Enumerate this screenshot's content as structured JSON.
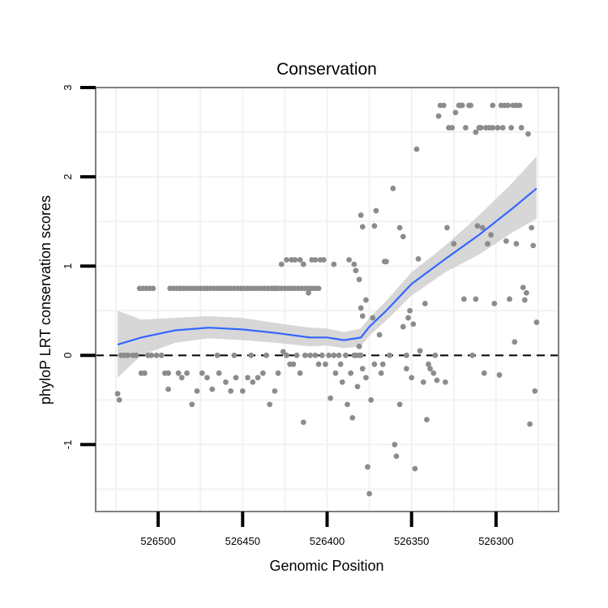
{
  "chart_data": {
    "type": "scatter",
    "title": "Conservation",
    "xlabel": "Genomic Position",
    "ylabel": "phyloP LRT conservation scores",
    "x_reversed": true,
    "xlim": [
      526537,
      526263
    ],
    "ylim": [
      -1.75,
      3.0
    ],
    "x_ticks": [
      526500,
      526450,
      526400,
      526350,
      526300
    ],
    "x_tick_labels": [
      "526500",
      "526450",
      "526400",
      "526350",
      "526300"
    ],
    "y_ticks": [
      -1,
      0,
      1,
      2,
      3
    ],
    "y_tick_labels": [
      "-1",
      "0",
      "1",
      "2",
      "3"
    ],
    "grid": true,
    "reference_line": {
      "y": 0,
      "style": "dashed"
    },
    "colors": {
      "points": "#8c8c8c",
      "smooth_line": "#3366ff",
      "confidence_band": "#d0d0d0",
      "panel_border": "#7f7f7f",
      "grid": "#f2f2f2"
    },
    "smooth": {
      "x": [
        526524,
        526510,
        526490,
        526470,
        526450,
        526430,
        526410,
        526400,
        526390,
        526380,
        526375,
        526365,
        526350,
        526330,
        526310,
        526290,
        526276
      ],
      "y": [
        0.12,
        0.2,
        0.28,
        0.31,
        0.29,
        0.25,
        0.2,
        0.2,
        0.17,
        0.2,
        0.32,
        0.5,
        0.8,
        1.08,
        1.35,
        1.65,
        1.87
      ],
      "lower": [
        -0.25,
        0.0,
        0.14,
        0.19,
        0.17,
        0.14,
        0.1,
        0.11,
        0.08,
        0.1,
        0.22,
        0.39,
        0.67,
        0.93,
        1.13,
        1.38,
        1.53
      ],
      "upper": [
        0.5,
        0.4,
        0.42,
        0.44,
        0.42,
        0.36,
        0.31,
        0.3,
        0.26,
        0.3,
        0.42,
        0.61,
        0.93,
        1.23,
        1.57,
        1.94,
        2.23
      ]
    },
    "points": [
      [
        526524,
        -0.43
      ],
      [
        526523,
        -0.5
      ],
      [
        526522,
        0.0
      ],
      [
        526520,
        0.0
      ],
      [
        526518,
        0.0
      ],
      [
        526515,
        0.0
      ],
      [
        526513,
        0.0
      ],
      [
        526511,
        0.75
      ],
      [
        526509,
        0.75
      ],
      [
        526507,
        0.75
      ],
      [
        526505,
        0.75
      ],
      [
        526503,
        0.75
      ],
      [
        526510,
        -0.2
      ],
      [
        526508,
        -0.2
      ],
      [
        526506,
        0.0
      ],
      [
        526504,
        0.0
      ],
      [
        526501,
        0.0
      ],
      [
        526498,
        0.0
      ],
      [
        526496,
        -0.2
      ],
      [
        526494,
        -0.2
      ],
      [
        526493,
        0.75
      ],
      [
        526491,
        0.75
      ],
      [
        526489,
        0.75
      ],
      [
        526487,
        0.75
      ],
      [
        526485,
        0.75
      ],
      [
        526483,
        0.75
      ],
      [
        526481,
        0.75
      ],
      [
        526479,
        0.75
      ],
      [
        526477,
        0.75
      ],
      [
        526475,
        0.75
      ],
      [
        526473,
        0.75
      ],
      [
        526471,
        0.75
      ],
      [
        526469,
        0.75
      ],
      [
        526467,
        0.75
      ],
      [
        526465,
        0.75
      ],
      [
        526463,
        0.75
      ],
      [
        526461,
        0.75
      ],
      [
        526459,
        0.75
      ],
      [
        526457,
        0.75
      ],
      [
        526455,
        0.75
      ],
      [
        526453,
        0.75
      ],
      [
        526451,
        0.75
      ],
      [
        526449,
        0.75
      ],
      [
        526447,
        0.75
      ],
      [
        526445,
        0.75
      ],
      [
        526443,
        0.75
      ],
      [
        526441,
        0.75
      ],
      [
        526439,
        0.75
      ],
      [
        526437,
        0.75
      ],
      [
        526435,
        0.75
      ],
      [
        526433,
        0.75
      ],
      [
        526431,
        0.75
      ],
      [
        526429,
        0.75
      ],
      [
        526427,
        0.75
      ],
      [
        526425,
        0.75
      ],
      [
        526423,
        0.75
      ],
      [
        526421,
        0.75
      ],
      [
        526419,
        0.75
      ],
      [
        526417,
        0.75
      ],
      [
        526415,
        0.75
      ],
      [
        526413,
        0.75
      ],
      [
        526411,
        0.75
      ],
      [
        526409,
        0.75
      ],
      [
        526407,
        0.75
      ],
      [
        526405,
        0.75
      ],
      [
        526494,
        -0.38
      ],
      [
        526488,
        -0.2
      ],
      [
        526486,
        -0.25
      ],
      [
        526483,
        -0.2
      ],
      [
        526480,
        -0.55
      ],
      [
        526477,
        -0.4
      ],
      [
        526474,
        -0.2
      ],
      [
        526471,
        -0.25
      ],
      [
        526468,
        -0.38
      ],
      [
        526464,
        -0.2
      ],
      [
        526460,
        -0.3
      ],
      [
        526457,
        -0.4
      ],
      [
        526454,
        -0.25
      ],
      [
        526450,
        -0.4
      ],
      [
        526447,
        -0.25
      ],
      [
        526444,
        -0.3
      ],
      [
        526441,
        -0.25
      ],
      [
        526438,
        -0.2
      ],
      [
        526434,
        -0.55
      ],
      [
        526431,
        -0.4
      ],
      [
        526429,
        -0.2
      ],
      [
        526465,
        0.0
      ],
      [
        526455,
        0.0
      ],
      [
        526445,
        0.0
      ],
      [
        526436,
        0.0
      ],
      [
        526432,
        0.75
      ],
      [
        526430,
        0.75
      ],
      [
        526427,
        1.02
      ],
      [
        526424,
        1.07
      ],
      [
        526421,
        1.07
      ],
      [
        526419,
        1.07
      ],
      [
        526416,
        1.07
      ],
      [
        526414,
        1.02
      ],
      [
        526409,
        1.07
      ],
      [
        526407,
        1.07
      ],
      [
        526404,
        1.07
      ],
      [
        526402,
        1.07
      ],
      [
        526396,
        1.02
      ],
      [
        526387,
        1.07
      ],
      [
        526384,
        1.02
      ],
      [
        526426,
        0.04
      ],
      [
        526424,
        0.0
      ],
      [
        526422,
        -0.1
      ],
      [
        526420,
        -0.1
      ],
      [
        526418,
        0.0
      ],
      [
        526416,
        -0.2
      ],
      [
        526414,
        -0.75
      ],
      [
        526413,
        0.0
      ],
      [
        526411,
        0.7
      ],
      [
        526410,
        0.0
      ],
      [
        526407,
        0.0
      ],
      [
        526405,
        -0.1
      ],
      [
        526403,
        0.0
      ],
      [
        526401,
        -0.1
      ],
      [
        526399,
        0.0
      ],
      [
        526398,
        -0.48
      ],
      [
        526396,
        0.0
      ],
      [
        526395,
        -0.2
      ],
      [
        526393,
        0.0
      ],
      [
        526392,
        -0.1
      ],
      [
        526391,
        -0.3
      ],
      [
        526389,
        0.0
      ],
      [
        526388,
        -0.55
      ],
      [
        526386,
        -0.2
      ],
      [
        526385,
        -0.7
      ],
      [
        526384,
        0.0
      ],
      [
        526383,
        0.0
      ],
      [
        526382,
        -0.35
      ],
      [
        526381,
        0.0
      ],
      [
        526380,
        0.0
      ],
      [
        526379,
        -0.15
      ],
      [
        526383,
        0.95
      ],
      [
        526381,
        0.85
      ],
      [
        526381,
        0.1
      ],
      [
        526380,
        0.53
      ],
      [
        526379,
        0.44
      ],
      [
        526380,
        1.57
      ],
      [
        526379,
        1.44
      ],
      [
        526377,
        0.62
      ],
      [
        526377,
        -0.25
      ],
      [
        526376,
        -1.25
      ],
      [
        526375,
        -1.55
      ],
      [
        526374,
        -0.5
      ],
      [
        526373,
        0.42
      ],
      [
        526372,
        -0.1
      ],
      [
        526372,
        1.45
      ],
      [
        526371,
        1.62
      ],
      [
        526369,
        0.23
      ],
      [
        526368,
        -0.2
      ],
      [
        526367,
        -0.1
      ],
      [
        526366,
        1.05
      ],
      [
        526365,
        1.05
      ],
      [
        526363,
        0.0
      ],
      [
        526361,
        1.87
      ],
      [
        526360,
        -1.0
      ],
      [
        526359,
        -1.13
      ],
      [
        526357,
        -0.55
      ],
      [
        526357,
        1.43
      ],
      [
        526355,
        0.32
      ],
      [
        526355,
        1.33
      ],
      [
        526353,
        0.0
      ],
      [
        526353,
        -0.15
      ],
      [
        526352,
        0.42
      ],
      [
        526351,
        0.5
      ],
      [
        526350,
        -0.25
      ],
      [
        526349,
        0.35
      ],
      [
        526348,
        -1.27
      ],
      [
        526347,
        2.31
      ],
      [
        526346,
        1.08
      ],
      [
        526345,
        0.05
      ],
      [
        526343,
        -0.3
      ],
      [
        526342,
        0.58
      ],
      [
        526341,
        -0.72
      ],
      [
        526340,
        -0.1
      ],
      [
        526339,
        -0.15
      ],
      [
        526337,
        -0.2
      ],
      [
        526336,
        0.0
      ],
      [
        526335,
        -0.28
      ],
      [
        526334,
        2.68
      ],
      [
        526333,
        2.8
      ],
      [
        526331,
        2.8
      ],
      [
        526330,
        -0.3
      ],
      [
        526329,
        1.43
      ],
      [
        526328,
        2.55
      ],
      [
        526326,
        2.55
      ],
      [
        526325,
        1.25
      ],
      [
        526324,
        2.72
      ],
      [
        526322,
        2.8
      ],
      [
        526321,
        2.8
      ],
      [
        526320,
        2.8
      ],
      [
        526319,
        0.63
      ],
      [
        526318,
        2.55
      ],
      [
        526316,
        2.8
      ],
      [
        526315,
        2.8
      ],
      [
        526314,
        0.0
      ],
      [
        526312,
        0.63
      ],
      [
        526312,
        2.5
      ],
      [
        526311,
        1.45
      ],
      [
        526310,
        2.55
      ],
      [
        526309,
        2.55
      ],
      [
        526308,
        1.43
      ],
      [
        526307,
        -0.2
      ],
      [
        526306,
        2.55
      ],
      [
        526305,
        1.25
      ],
      [
        526304,
        2.55
      ],
      [
        526303,
        1.35
      ],
      [
        526302,
        2.55
      ],
      [
        526302,
        2.8
      ],
      [
        526301,
        0.58
      ],
      [
        526299,
        2.55
      ],
      [
        526298,
        -0.22
      ],
      [
        526297,
        2.8
      ],
      [
        526296,
        2.55
      ],
      [
        526295,
        2.8
      ],
      [
        526294,
        1.28
      ],
      [
        526293,
        2.8
      ],
      [
        526292,
        0.63
      ],
      [
        526291,
        2.55
      ],
      [
        526290,
        2.8
      ],
      [
        526289,
        0.15
      ],
      [
        526288,
        2.8
      ],
      [
        526288,
        1.25
      ],
      [
        526286,
        2.8
      ],
      [
        526285,
        2.55
      ],
      [
        526284,
        0.76
      ],
      [
        526283,
        0.62
      ],
      [
        526282,
        0.7
      ],
      [
        526281,
        2.48
      ],
      [
        526280,
        -0.77
      ],
      [
        526279,
        1.43
      ],
      [
        526278,
        1.23
      ],
      [
        526277,
        -0.4
      ],
      [
        526276,
        0.37
      ]
    ]
  }
}
